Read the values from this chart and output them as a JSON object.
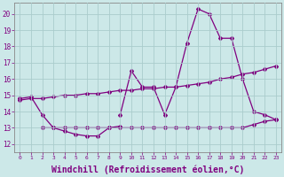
{
  "bg_color": "#cce8e8",
  "line_color": "#800080",
  "grid_color": "#b0d0d0",
  "xlabel": "Windchill (Refroidissement éolien,°C)",
  "xlabel_fontsize": 7.0,
  "ylim": [
    11.5,
    20.7
  ],
  "xlim": [
    -0.5,
    23.5
  ],
  "line1_x": [
    0,
    1,
    2,
    3,
    4,
    5,
    6,
    7,
    8,
    9
  ],
  "line1_y": [
    14.8,
    14.9,
    13.8,
    13.0,
    12.8,
    12.6,
    12.5,
    12.5,
    13.0,
    13.1
  ],
  "line2_x": [
    2,
    3,
    4,
    5,
    6,
    7,
    8,
    9,
    10,
    11,
    12,
    13,
    14,
    15,
    16,
    17,
    18,
    19,
    20,
    21,
    22,
    23
  ],
  "line2_y": [
    13.0,
    13.0,
    13.0,
    13.0,
    13.0,
    13.0,
    13.0,
    13.0,
    13.0,
    13.0,
    13.0,
    13.0,
    13.0,
    13.0,
    13.0,
    13.0,
    13.0,
    13.0,
    13.0,
    13.2,
    13.4,
    13.5
  ],
  "line3_x": [
    0,
    1,
    2,
    3,
    4,
    5,
    6,
    7,
    8,
    9,
    10,
    11,
    12,
    13,
    14,
    15,
    16,
    17,
    18,
    19,
    20,
    21,
    22,
    23
  ],
  "line3_y": [
    14.7,
    14.8,
    14.8,
    14.9,
    15.0,
    15.0,
    15.1,
    15.1,
    15.2,
    15.3,
    15.3,
    15.4,
    15.4,
    15.5,
    15.5,
    15.6,
    15.7,
    15.8,
    16.0,
    16.1,
    16.3,
    16.4,
    16.6,
    16.8
  ],
  "line4_x": [
    9,
    10,
    11,
    12,
    13,
    14,
    15,
    16,
    17,
    18,
    19,
    20,
    21,
    22,
    23
  ],
  "line4_y": [
    13.8,
    16.5,
    15.5,
    15.5,
    13.8,
    15.5,
    18.2,
    20.3,
    20.0,
    18.5,
    18.5,
    16.0,
    14.0,
    13.8,
    13.5
  ]
}
